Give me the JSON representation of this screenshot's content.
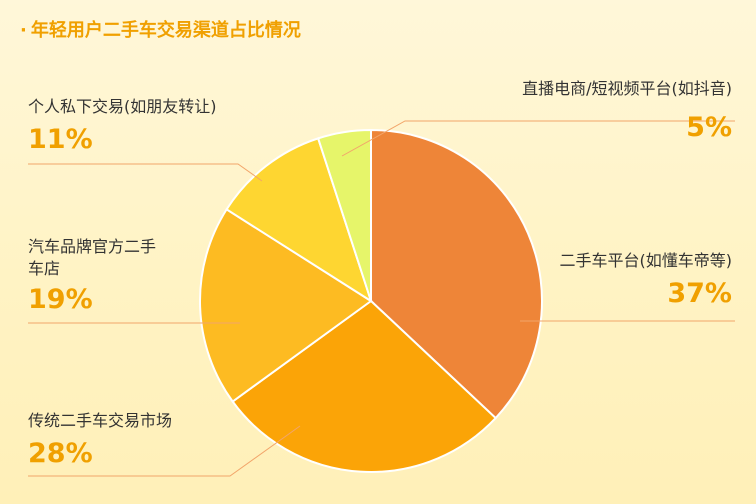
{
  "title": "年轻用户二手车交易渠道占比情况",
  "title_bullet": "·",
  "chart_data": {
    "type": "pie",
    "title": "年轻用户二手车交易渠道占比情况",
    "slices": [
      {
        "label": "二手车平台(如懂车帝等)",
        "value": 37,
        "value_label": "37%",
        "color": "#ee8538"
      },
      {
        "label": "传统二手车交易市场",
        "value": 28,
        "value_label": "28%",
        "color": "#fba407"
      },
      {
        "label": "汽车品牌官方二手车店",
        "value": 19,
        "value_label": "19%",
        "color": "#fdbb22"
      },
      {
        "label": "个人私下交易(如朋友转让)",
        "value": 11,
        "value_label": "11%",
        "color": "#fed631"
      },
      {
        "label": "直播电商/短视频平台(如抖音)",
        "value": 5,
        "value_label": "5%",
        "color": "#e6f56a"
      }
    ]
  }
}
